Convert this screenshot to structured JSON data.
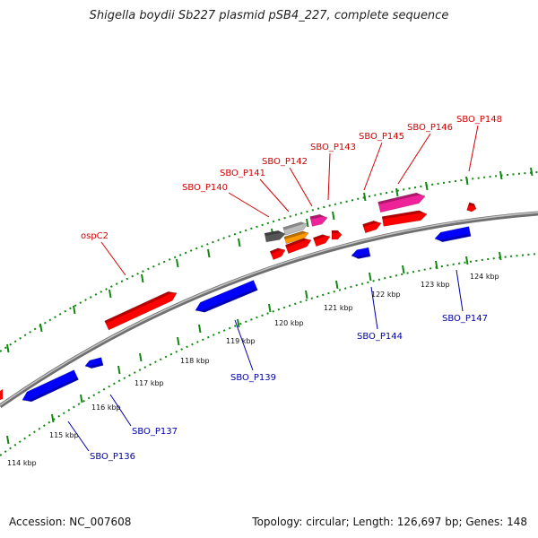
{
  "title": "Shigella boydii Sb227 plasmid pSB4_227, complete sequence",
  "footer": {
    "accession": "Accession: NC_007608",
    "summary": "Topology: circular; Length: 126,697 bp; Genes: 148"
  },
  "colors": {
    "forward": "#ff0000",
    "reverse": "#0000ff",
    "pink": "#ee2299",
    "orange": "#ff9900",
    "dark_gray": "#555555",
    "light_gray": "#bbbbbb",
    "backbone": "#808080",
    "dotted_ring": "#118811",
    "red_label": "#d40000",
    "blue_label": "#0000aa"
  },
  "tick_labels": [
    "114 kbp",
    "115 kbp",
    "116 kbp",
    "117 kbp",
    "118 kbp",
    "119 kbp",
    "120 kbp",
    "121 kbp",
    "122 kbp",
    "123 kbp",
    "124 kbp"
  ],
  "forward_labels": [
    "ospC2",
    "SBO_P140",
    "SBO_P141",
    "SBO_P142",
    "SBO_P143",
    "SBO_P145",
    "SBO_P146",
    "SBO_P148"
  ],
  "reverse_labels": [
    "SBO_P136",
    "SBO_P137",
    "SBO_P139",
    "SBO_P144",
    "SBO_P147"
  ]
}
